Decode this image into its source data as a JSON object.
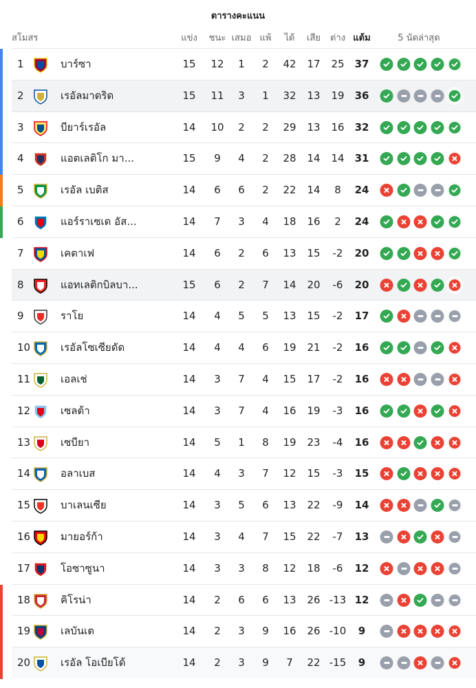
{
  "title": "ตารางคะแนน",
  "headers": {
    "club": "สโมสร",
    "played": "แข่ง",
    "won": "ชนะ",
    "drawn": "เสมอ",
    "lost": "แพ้",
    "gf": "ได้",
    "ga": "เสีย",
    "gd": "ต่าง",
    "pts": "แต้ม",
    "form": "5 นัดล่าสุด"
  },
  "colors": {
    "win": "#34a853",
    "loss": "#ea4335",
    "draw": "#9aa0ab",
    "ucl": "#4285f4",
    "uel": "#fa7b17",
    "uecl": "#34a853",
    "relegation": "#ea4335"
  },
  "rows": [
    {
      "pos": "1",
      "team": "บาร์ซา",
      "played": "15",
      "won": "12",
      "drawn": "1",
      "lost": "2",
      "gf": "42",
      "ga": "17",
      "gd": "25",
      "pts": "37",
      "form": [
        "W",
        "W",
        "W",
        "W",
        "W"
      ],
      "zone": "ucl",
      "crest": [
        "#a50044",
        "#004d98",
        "#edbb00"
      ]
    },
    {
      "pos": "2",
      "team": "เรอัลมาดริด",
      "played": "15",
      "won": "11",
      "drawn": "3",
      "lost": "1",
      "gf": "32",
      "ga": "13",
      "gd": "19",
      "pts": "36",
      "form": [
        "W",
        "D",
        "D",
        "D",
        "W"
      ],
      "zone": "ucl",
      "crest": [
        "#ffffff",
        "#d4af37",
        "#00529f"
      ],
      "highlight": true
    },
    {
      "pos": "3",
      "team": "บียาร์เรอัล",
      "played": "14",
      "won": "10",
      "drawn": "2",
      "lost": "2",
      "gf": "29",
      "ga": "13",
      "gd": "16",
      "pts": "32",
      "form": [
        "W",
        "W",
        "W",
        "W",
        "W"
      ],
      "zone": "ucl",
      "crest": [
        "#ffe667",
        "#005187",
        "#e2001a"
      ]
    },
    {
      "pos": "4",
      "team": "แอตเลติโก มา...",
      "played": "15",
      "won": "9",
      "drawn": "4",
      "lost": "2",
      "gf": "28",
      "ga": "14",
      "gd": "14",
      "pts": "31",
      "form": [
        "W",
        "W",
        "W",
        "W",
        "L"
      ],
      "zone": "ucl",
      "crest": [
        "#cb3524",
        "#272e61",
        "#ffffff"
      ]
    },
    {
      "pos": "5",
      "team": "เรอัล เบติส",
      "played": "14",
      "won": "6",
      "drawn": "6",
      "lost": "2",
      "gf": "22",
      "ga": "14",
      "gd": "8",
      "pts": "24",
      "form": [
        "L",
        "W",
        "D",
        "D",
        "W"
      ],
      "zone": "uel",
      "crest": [
        "#00954c",
        "#ffffff",
        "#d4af37"
      ]
    },
    {
      "pos": "6",
      "team": "แอร์ราเซเด อัส...",
      "played": "14",
      "won": "7",
      "drawn": "3",
      "lost": "4",
      "gf": "18",
      "ga": "16",
      "gd": "2",
      "pts": "24",
      "form": [
        "W",
        "L",
        "L",
        "W",
        "W"
      ],
      "zone": "uecl",
      "crest": [
        "#0070b8",
        "#e2001a",
        "#ffffff"
      ]
    },
    {
      "pos": "7",
      "team": "เคตาเฟ",
      "played": "14",
      "won": "6",
      "drawn": "2",
      "lost": "6",
      "gf": "13",
      "ga": "15",
      "gd": "-2",
      "pts": "20",
      "form": [
        "W",
        "W",
        "L",
        "L",
        "W"
      ],
      "crest": [
        "#005999",
        "#ffd700",
        "#e2001a"
      ]
    },
    {
      "pos": "8",
      "team": "แอทเลติกบิลบา...",
      "played": "15",
      "won": "6",
      "drawn": "2",
      "lost": "7",
      "gf": "14",
      "ga": "20",
      "gd": "-6",
      "pts": "20",
      "form": [
        "L",
        "W",
        "L",
        "W",
        "L"
      ],
      "crest": [
        "#ee2523",
        "#ffffff",
        "#000000"
      ],
      "highlight": true
    },
    {
      "pos": "9",
      "team": "ราโย",
      "played": "14",
      "won": "4",
      "drawn": "5",
      "lost": "5",
      "gf": "13",
      "ga": "15",
      "gd": "-2",
      "pts": "17",
      "form": [
        "W",
        "L",
        "D",
        "D",
        "D"
      ],
      "crest": [
        "#ffffff",
        "#e53027",
        "#333333"
      ]
    },
    {
      "pos": "10",
      "team": "เรอัลโซเซียดัด",
      "played": "14",
      "won": "4",
      "drawn": "4",
      "lost": "6",
      "gf": "19",
      "ga": "21",
      "gd": "-2",
      "pts": "16",
      "form": [
        "W",
        "W",
        "D",
        "W",
        "L"
      ],
      "crest": [
        "#0067b1",
        "#ffffff",
        "#d4af37"
      ]
    },
    {
      "pos": "11",
      "team": "เอลเช่",
      "played": "14",
      "won": "3",
      "drawn": "7",
      "lost": "4",
      "gf": "15",
      "ga": "17",
      "gd": "-2",
      "pts": "16",
      "form": [
        "L",
        "L",
        "D",
        "D",
        "L"
      ],
      "crest": [
        "#ffffff",
        "#05642c",
        "#d4af37"
      ]
    },
    {
      "pos": "12",
      "team": "เซลต้า",
      "played": "14",
      "won": "3",
      "drawn": "7",
      "lost": "4",
      "gf": "16",
      "ga": "19",
      "gd": "-3",
      "pts": "16",
      "form": [
        "W",
        "W",
        "L",
        "W",
        "L"
      ],
      "crest": [
        "#8ac3ee",
        "#e2001a",
        "#ffffff"
      ]
    },
    {
      "pos": "13",
      "team": "เซบียา",
      "played": "14",
      "won": "5",
      "drawn": "1",
      "lost": "8",
      "gf": "19",
      "ga": "23",
      "gd": "-4",
      "pts": "16",
      "form": [
        "L",
        "L",
        "W",
        "L",
        "L"
      ],
      "crest": [
        "#ffffff",
        "#d4021d",
        "#d4af37"
      ]
    },
    {
      "pos": "14",
      "team": "อลาเบส",
      "played": "14",
      "won": "4",
      "drawn": "3",
      "lost": "7",
      "gf": "12",
      "ga": "15",
      "gd": "-3",
      "pts": "15",
      "form": [
        "L",
        "W",
        "L",
        "L",
        "L"
      ],
      "crest": [
        "#0761af",
        "#ffffff",
        "#d4af37"
      ]
    },
    {
      "pos": "15",
      "team": "บาเลนเซีย",
      "played": "14",
      "won": "3",
      "drawn": "5",
      "lost": "6",
      "gf": "13",
      "ga": "22",
      "gd": "-9",
      "pts": "14",
      "form": [
        "L",
        "L",
        "D",
        "W",
        "D"
      ],
      "crest": [
        "#ffffff",
        "#ee3524",
        "#000000"
      ]
    },
    {
      "pos": "16",
      "team": "มายอร์ก้า",
      "played": "14",
      "won": "3",
      "drawn": "4",
      "lost": "7",
      "gf": "15",
      "ga": "22",
      "gd": "-7",
      "pts": "13",
      "form": [
        "D",
        "L",
        "W",
        "L",
        "D"
      ],
      "crest": [
        "#e20613",
        "#ffd700",
        "#000000"
      ]
    },
    {
      "pos": "17",
      "team": "โอซาซูนา",
      "played": "14",
      "won": "3",
      "drawn": "3",
      "lost": "8",
      "gf": "12",
      "ga": "18",
      "gd": "-6",
      "pts": "12",
      "form": [
        "L",
        "D",
        "L",
        "L",
        "D"
      ],
      "crest": [
        "#d91a21",
        "#0a346f",
        "#ffffff"
      ]
    },
    {
      "pos": "18",
      "team": "คิโรน่า",
      "played": "14",
      "won": "2",
      "drawn": "6",
      "lost": "6",
      "gf": "13",
      "ga": "26",
      "gd": "-13",
      "pts": "12",
      "form": [
        "D",
        "L",
        "W",
        "D",
        "D"
      ],
      "zone": "relegation",
      "crest": [
        "#cd2534",
        "#ffffff",
        "#d4af37"
      ]
    },
    {
      "pos": "19",
      "team": "เลบันเต",
      "played": "14",
      "won": "2",
      "drawn": "3",
      "lost": "9",
      "gf": "16",
      "ga": "26",
      "gd": "-10",
      "pts": "9",
      "form": [
        "D",
        "L",
        "L",
        "L",
        "L"
      ],
      "zone": "relegation",
      "crest": [
        "#00427f",
        "#b4053f",
        "#d4af37"
      ]
    },
    {
      "pos": "20",
      "team": "เรอัล โอเบียโด้",
      "played": "14",
      "won": "2",
      "drawn": "3",
      "lost": "9",
      "gf": "7",
      "ga": "22",
      "gd": "-15",
      "pts": "9",
      "form": [
        "D",
        "D",
        "L",
        "D",
        "L"
      ],
      "zone": "relegation",
      "crest": [
        "#ffffff",
        "#0054a6",
        "#d4af37"
      ],
      "highlight2": true
    }
  ]
}
